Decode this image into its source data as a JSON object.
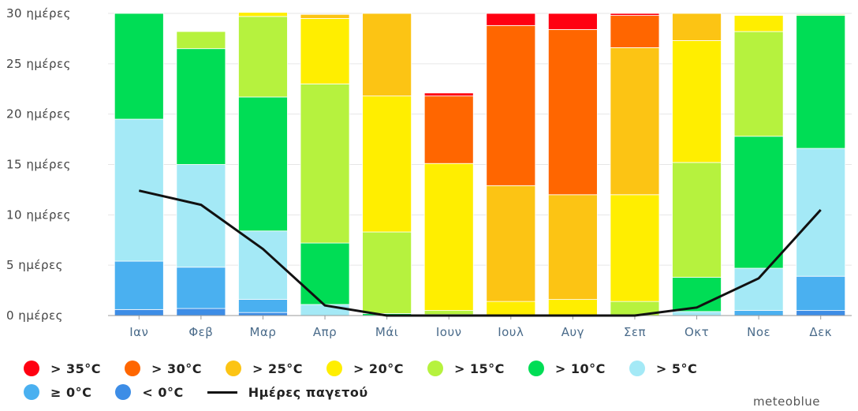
{
  "chart_data": {
    "type": "bar",
    "stacked": true,
    "categories": [
      "Ιαν",
      "Φεβ",
      "Μαρ",
      "Απρ",
      "Μάι",
      "Ιουν",
      "Ιουλ",
      "Αυγ",
      "Σεπ",
      "Οκτ",
      "Νοε",
      "Δεκ"
    ],
    "y_ticks": [
      "0 ημέρες",
      "5 ημέρες",
      "10 ημέρες",
      "15 ημέρες",
      "20 ημέρες",
      "25 ημέρες",
      "30 ημέρες"
    ],
    "ylim": [
      0,
      30
    ],
    "series": [
      {
        "name": "< 0°C",
        "color": "#3d8de6",
        "values": [
          0.6,
          0.7,
          0.3,
          0,
          0,
          0,
          0,
          0,
          0,
          0,
          0,
          0.5
        ]
      },
      {
        "name": "≥ 0°C",
        "color": "#4ab0f0",
        "values": [
          4.8,
          4.1,
          1.3,
          0,
          0,
          0,
          0,
          0,
          0,
          0,
          0.5,
          3.4
        ]
      },
      {
        "name": "> 5°C",
        "color": "#a4e9f6",
        "values": [
          14.1,
          10.2,
          6.8,
          1.1,
          0,
          0,
          0,
          0,
          0,
          0.4,
          4.2,
          12.7
        ]
      },
      {
        "name": "> 10°C",
        "color": "#00dd55",
        "values": [
          10.5,
          11.5,
          13.3,
          6.1,
          0.2,
          0.1,
          0,
          0,
          0,
          3.4,
          13.1,
          13.2
        ]
      },
      {
        "name": "> 15°C",
        "color": "#b6f23e",
        "values": [
          0,
          1.7,
          8.0,
          15.8,
          8.1,
          0.4,
          0,
          0,
          1.4,
          11.4,
          10.4,
          0.1
        ]
      },
      {
        "name": "> 20°C",
        "color": "#ffee00",
        "values": [
          0,
          0,
          0.4,
          6.5,
          13.5,
          14.6,
          1.4,
          1.6,
          10.6,
          12.1,
          1.6,
          0
        ]
      },
      {
        "name": "> 25°C",
        "color": "#fcc414",
        "values": [
          0,
          0,
          0,
          0.4,
          8.2,
          0,
          11.5,
          10.4,
          14.6,
          2.7,
          0,
          0
        ]
      },
      {
        "name": "> 30°C",
        "color": "#ff6600",
        "values": [
          0,
          0,
          0,
          0,
          0,
          6.7,
          15.9,
          16.4,
          3.2,
          0,
          0,
          0
        ]
      },
      {
        "name": "> 35°C",
        "color": "#ff0011",
        "values": [
          0,
          0,
          0,
          0,
          0,
          0.3,
          1.2,
          1.6,
          0.2,
          0,
          0,
          0
        ]
      }
    ],
    "line_series": {
      "name": "Ημέρες παγετού",
      "color": "#111111",
      "values": [
        12.4,
        11.0,
        6.6,
        1.0,
        0,
        0,
        0,
        0,
        0,
        0.8,
        3.7,
        10.5
      ]
    },
    "grid": true,
    "legend_position": "bottom"
  },
  "legend": {
    "row1": [
      "> 35°C",
      "> 30°C",
      "> 25°C",
      "> 20°C",
      "> 15°C",
      "> 10°C",
      "> 5°C"
    ],
    "row2": [
      "≥ 0°C",
      "< 0°C"
    ],
    "line_label": "Ημέρες παγετού"
  },
  "brand": "meteoblue"
}
